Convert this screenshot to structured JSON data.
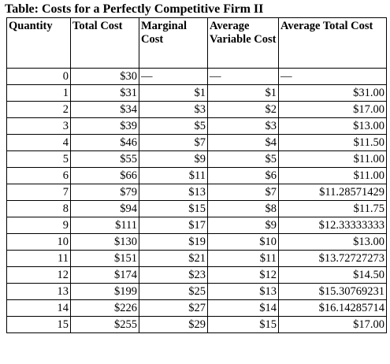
{
  "title": "Table: Costs for a Perfectly Competitive Firm II",
  "headers": {
    "quantity": "Quantity",
    "total_cost": "Total Cost",
    "marginal_cost": "Marginal Cost",
    "avg_variable_cost": "Average Variable Cost",
    "avg_total_cost": "Average Total Cost"
  },
  "rows": [
    {
      "q": "0",
      "tc": "$30",
      "mc": "—",
      "avc": "—",
      "atc": "—"
    },
    {
      "q": "1",
      "tc": "$31",
      "mc": "$1",
      "avc": "$1",
      "atc": "$31.00"
    },
    {
      "q": "2",
      "tc": "$34",
      "mc": "$3",
      "avc": "$2",
      "atc": "$17.00"
    },
    {
      "q": "3",
      "tc": "$39",
      "mc": "$5",
      "avc": "$3",
      "atc": "$13.00"
    },
    {
      "q": "4",
      "tc": "$46",
      "mc": "$7",
      "avc": "$4",
      "atc": "$11.50"
    },
    {
      "q": "5",
      "tc": "$55",
      "mc": "$9",
      "avc": "$5",
      "atc": "$11.00"
    },
    {
      "q": "6",
      "tc": "$66",
      "mc": "$11",
      "avc": "$6",
      "atc": "$11.00"
    },
    {
      "q": "7",
      "tc": "$79",
      "mc": "$13",
      "avc": "$7",
      "atc": "$11.28571429"
    },
    {
      "q": "8",
      "tc": "$94",
      "mc": "$15",
      "avc": "$8",
      "atc": "$11.75"
    },
    {
      "q": "9",
      "tc": "$111",
      "mc": "$17",
      "avc": "$9",
      "atc": "$12.33333333"
    },
    {
      "q": "10",
      "tc": "$130",
      "mc": "$19",
      "avc": "$10",
      "atc": "$13.00"
    },
    {
      "q": "11",
      "tc": "$151",
      "mc": "$21",
      "avc": "$11",
      "atc": "$13.72727273"
    },
    {
      "q": "12",
      "tc": "$174",
      "mc": "$23",
      "avc": "$12",
      "atc": "$14.50"
    },
    {
      "q": "13",
      "tc": "$199",
      "mc": "$25",
      "avc": "$13",
      "atc": "$15.30769231"
    },
    {
      "q": "14",
      "tc": "$226",
      "mc": "$27",
      "avc": "$14",
      "atc": "$16.14285714"
    },
    {
      "q": "15",
      "tc": "$255",
      "mc": "$29",
      "avc": "$15",
      "atc": "$17.00"
    }
  ]
}
